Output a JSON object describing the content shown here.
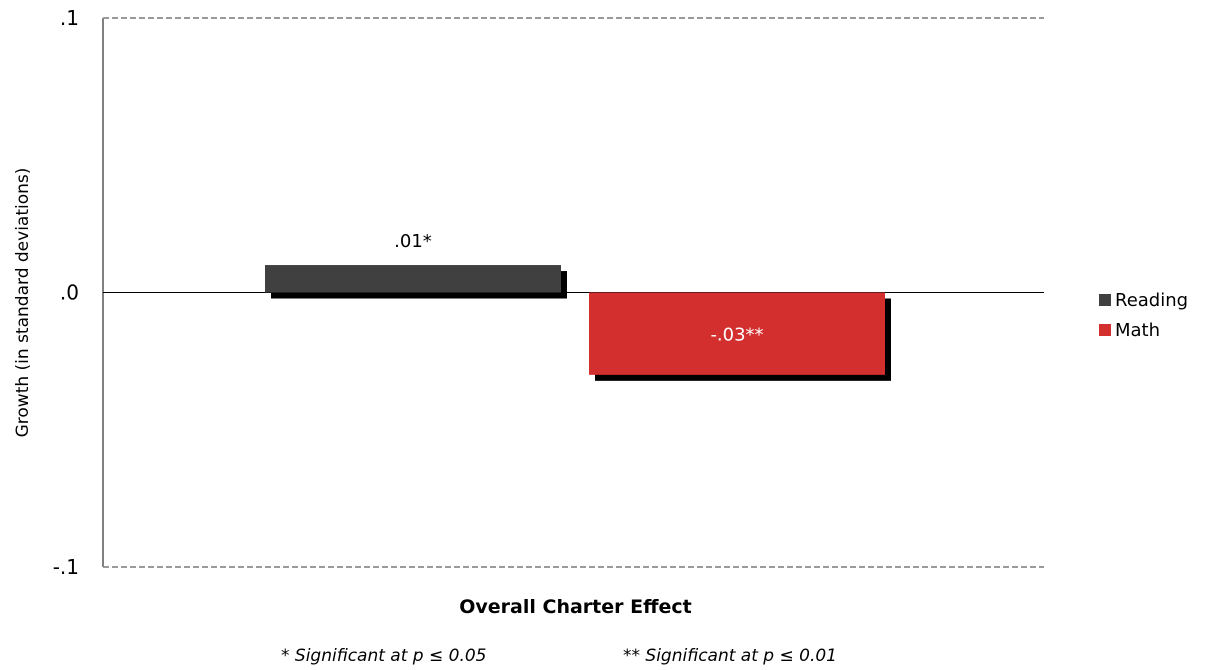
{
  "chart_data": {
    "type": "bar",
    "categories": [
      "Overall Charter Effect"
    ],
    "series": [
      {
        "name": "Reading",
        "values": [
          0.01
        ],
        "label": ".01*",
        "color": "#404040",
        "label_color": "#000000"
      },
      {
        "name": "Math",
        "values": [
          -0.03
        ],
        "label": "-.03**",
        "color": "#d32f2f",
        "label_color": "#ffffff"
      }
    ],
    "title": "",
    "xlabel": "Overall Charter Effect",
    "ylabel": "Growth (in standard deviations)",
    "ylim": [
      -0.1,
      0.1
    ],
    "yticks": [
      {
        "value": 0.1,
        "label": ".1"
      },
      {
        "value": 0.0,
        "label": ".0"
      },
      {
        "value": -0.1,
        "label": "-.1"
      }
    ],
    "grid": "dashed lines at top and bottom limits",
    "legend": "right",
    "footnotes": [
      "* Significant at p ≤ 0.05",
      "** Significant at p ≤ 0.01"
    ]
  }
}
